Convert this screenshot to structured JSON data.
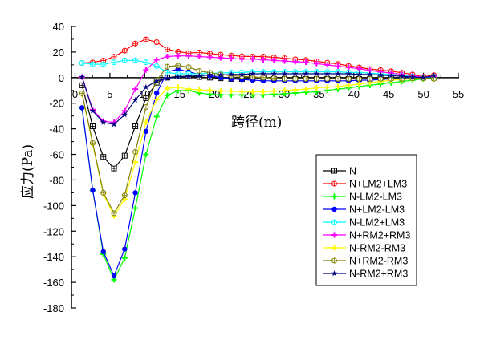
{
  "chart_data": {
    "type": "line",
    "title": "",
    "xlabel": "跨径(m)",
    "ylabel": "应力(Pa)",
    "xlim": [
      0,
      55
    ],
    "ylim": [
      -180,
      40
    ],
    "xticks": [
      "0",
      "5",
      "10",
      "15",
      "20",
      "25",
      "30",
      "35",
      "40",
      "45",
      "50",
      "55"
    ],
    "yticks": [
      "40",
      "20",
      "0",
      "-20",
      "-40",
      "-60",
      "-80",
      "-100",
      "-120",
      "-140",
      "-160",
      "-180"
    ],
    "legend_position": "lower-right",
    "x": [
      1.0,
      2.53,
      4.06,
      5.59,
      7.12,
      8.65,
      10.18,
      11.71,
      13.24,
      14.77,
      16.3,
      17.83,
      19.36,
      20.89,
      22.42,
      23.95,
      25.48,
      27.01,
      28.54,
      30.07,
      31.6,
      33.13,
      34.66,
      36.19,
      37.72,
      39.25,
      40.78,
      42.31,
      43.84,
      45.37,
      46.9,
      48.43,
      49.96,
      51.5
    ],
    "series": [
      {
        "name": "N",
        "color": "#000000",
        "marker": "square-cross",
        "values": [
          -6,
          -38,
          -62,
          -71,
          -61,
          -38,
          -16,
          -4,
          0,
          1,
          1,
          0.5,
          0,
          -0.5,
          -1,
          -1,
          -1,
          -1,
          -1,
          -1,
          -1,
          -1,
          -1,
          -1,
          -1,
          -1,
          -1,
          -1,
          -0.5,
          -0.5,
          0,
          0,
          0,
          0
        ]
      },
      {
        "name": "N+LM2+LM3",
        "color": "#ff0000",
        "marker": "circle-cross",
        "values": [
          11.5,
          11.9,
          13.4,
          16.3,
          21.1,
          26.7,
          29.9,
          27.8,
          22.2,
          20.3,
          19.2,
          19.7,
          18.8,
          18,
          17.3,
          16.7,
          16.5,
          16.5,
          15.9,
          15.2,
          14.4,
          13.8,
          12.8,
          11.7,
          10.7,
          9.2,
          8,
          6.7,
          5.9,
          5,
          3.8,
          2.5,
          0.6,
          1.9
        ]
      },
      {
        "name": "N-LM2-LM3",
        "color": "#00ff00",
        "marker": "plus",
        "values": [
          -24,
          -88,
          -138,
          -158,
          -141,
          -102,
          -60,
          -30.5,
          -13.8,
          -10.2,
          -10,
          -12,
          -13,
          -13.5,
          -13.5,
          -13.5,
          -13.5,
          -13.5,
          -13,
          -12.5,
          -12,
          -11.5,
          -11,
          -10,
          -9,
          -8,
          -7,
          -6,
          -5,
          -4,
          -3,
          -2,
          -1,
          -0.5
        ]
      },
      {
        "name": "N+LM2-LM3",
        "color": "#0000ff",
        "marker": "filled-circle",
        "values": [
          -23.5,
          -88,
          -136,
          -155,
          -134,
          -90,
          -42,
          -12,
          4.5,
          6.5,
          4.5,
          2.5,
          1.5,
          0,
          -1,
          -1.5,
          -2,
          -2.5,
          -2.5,
          -2.5,
          -2.5,
          -2.5,
          -2.5,
          -2.5,
          -2.5,
          -2.5,
          -2,
          -2,
          -1.5,
          -1,
          -0.5,
          0,
          0,
          1
        ]
      },
      {
        "name": "N-LM2+LM3",
        "color": "#00ffff",
        "marker": "circle-cross",
        "values": [
          11.5,
          10.5,
          10.5,
          12,
          13.5,
          13.5,
          12,
          9,
          4,
          3,
          3,
          3,
          3.5,
          3.5,
          4,
          4,
          4.5,
          4.5,
          4.5,
          4.5,
          4.5,
          4.5,
          4.5,
          4.5,
          4.5,
          4,
          4,
          3.5,
          3,
          2.5,
          2,
          1,
          0,
          1
        ]
      },
      {
        "name": "N+RM2+RM3",
        "color": "#ff00ff",
        "marker": "plus",
        "values": [
          0.5,
          -25,
          -34,
          -35,
          -26,
          -9,
          6,
          14,
          16.5,
          17,
          17,
          16.5,
          16,
          15.5,
          15,
          14.5,
          14.5,
          14,
          13.5,
          13,
          12.5,
          12,
          11,
          10,
          9,
          8,
          7,
          5.5,
          4.5,
          3.5,
          2.5,
          1.5,
          0.5,
          1
        ]
      },
      {
        "name": "N-RM2-RM3",
        "color": "#ffff00",
        "marker": "plus",
        "values": [
          -13,
          -52,
          -91,
          -108,
          -95,
          -66,
          -35,
          -17,
          -8.4,
          -7.5,
          -9,
          -9.5,
          -10,
          -10.5,
          -10.5,
          -11,
          -11,
          -11,
          -10.5,
          -10,
          -9.5,
          -9,
          -8,
          -7.5,
          -7,
          -6,
          -5,
          -4,
          -3,
          -2,
          -1.5,
          -1,
          -0.5,
          -1
        ]
      },
      {
        "name": "N+RM2-RM3",
        "color": "#808000",
        "marker": "circle-cross",
        "values": [
          -12.3,
          -51,
          -90,
          -106,
          -92,
          -58,
          -23,
          -2,
          8.6,
          9.4,
          8.2,
          5.2,
          3.8,
          2.5,
          1.5,
          1,
          0.5,
          0,
          -0.5,
          -1,
          -1,
          -1,
          -1,
          -1,
          -1,
          -1,
          -1,
          -1,
          -1,
          -1,
          -1,
          -0.5,
          -0.5,
          -1
        ]
      },
      {
        "name": "N-RM2+RM3",
        "color": "#000080",
        "marker": "star",
        "values": [
          0.5,
          -26,
          -35,
          -36.5,
          -29,
          -17.5,
          -7.5,
          -2.5,
          -0.5,
          0.5,
          1,
          1.5,
          2,
          2,
          2.5,
          2.5,
          3,
          3,
          3,
          3,
          3,
          3,
          3,
          3,
          3,
          3,
          2.5,
          2.5,
          2,
          1.5,
          1,
          0.5,
          0,
          1.5
        ]
      }
    ]
  }
}
